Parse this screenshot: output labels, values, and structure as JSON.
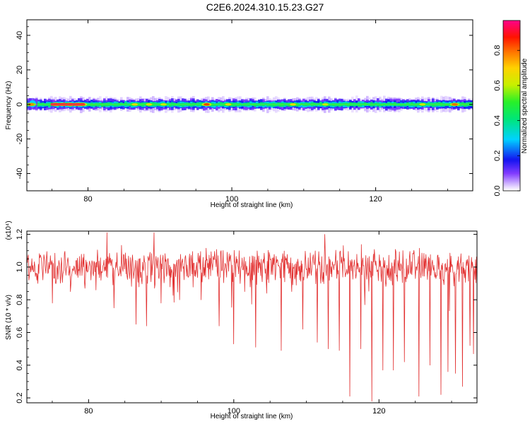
{
  "figure": {
    "title": "C2E6.2024.310.15.23.G27"
  },
  "chart_data": [
    {
      "type": "heatmap",
      "xlabel": "Height of straight line (km)",
      "ylabel": "Frequency (Hz)",
      "xlim": [
        71.5,
        133.5
      ],
      "ylim": [
        -50,
        49
      ],
      "xticks": [
        80,
        100,
        120
      ],
      "yticks": [
        -40,
        -20,
        0,
        20,
        40
      ],
      "colorbar": {
        "label": "Normalized spectral amplitude",
        "range": [
          0.0,
          0.97
        ],
        "ticks": [
          0.0,
          0.2,
          0.4,
          0.6,
          0.8
        ]
      },
      "ridge": {
        "center_frequency": 0,
        "half_width_hz": 2,
        "hot_spots": [
          {
            "x": 72.1,
            "amp": 0.82
          },
          {
            "x": 75.5,
            "amp": 0.95
          },
          {
            "x": 76.5,
            "amp": 0.95
          },
          {
            "x": 77.5,
            "amp": 0.95
          },
          {
            "x": 78.5,
            "amp": 0.92
          },
          {
            "x": 79.2,
            "amp": 0.9
          },
          {
            "x": 86.5,
            "amp": 0.7
          },
          {
            "x": 88.5,
            "amp": 0.68
          },
          {
            "x": 90.5,
            "amp": 0.66
          },
          {
            "x": 96.5,
            "amp": 0.9
          },
          {
            "x": 99.5,
            "amp": 0.7
          },
          {
            "x": 108.5,
            "amp": 0.7
          },
          {
            "x": 113.0,
            "amp": 0.65
          },
          {
            "x": 126.5,
            "amp": 0.66
          },
          {
            "x": 131.0,
            "amp": 0.85
          }
        ]
      }
    },
    {
      "type": "line",
      "xlabel": "Height of straight line (km)",
      "ylabel": "SNR (10 * v/v)",
      "y_multiplier": "(x10⁴)",
      "xlim": [
        71.5,
        133.5
      ],
      "ylim": [
        0.17,
        1.22
      ],
      "xticks": [
        80,
        100,
        120
      ],
      "yticks": [
        0.2,
        0.4,
        0.6,
        0.8,
        1.0,
        1.2
      ],
      "line_color": "#e23030",
      "baseline": 1.0,
      "dips": [
        {
          "x": 73.0,
          "y": 0.9
        },
        {
          "x": 75.0,
          "y": 0.78
        },
        {
          "x": 77.5,
          "y": 0.85
        },
        {
          "x": 79.5,
          "y": 0.87
        },
        {
          "x": 81.0,
          "y": 0.86
        },
        {
          "x": 83.5,
          "y": 0.75
        },
        {
          "x": 86.5,
          "y": 0.65
        },
        {
          "x": 88.0,
          "y": 0.64
        },
        {
          "x": 90.0,
          "y": 0.78
        },
        {
          "x": 92.5,
          "y": 0.8
        },
        {
          "x": 95.5,
          "y": 0.8
        },
        {
          "x": 98.0,
          "y": 0.64
        },
        {
          "x": 100.0,
          "y": 0.53
        },
        {
          "x": 101.5,
          "y": 0.85
        },
        {
          "x": 103.0,
          "y": 0.51
        },
        {
          "x": 104.5,
          "y": 0.84
        },
        {
          "x": 106.5,
          "y": 0.49
        },
        {
          "x": 108.0,
          "y": 0.85
        },
        {
          "x": 109.5,
          "y": 0.62
        },
        {
          "x": 111.5,
          "y": 0.54
        },
        {
          "x": 113.0,
          "y": 0.5
        },
        {
          "x": 114.5,
          "y": 0.49
        },
        {
          "x": 116.0,
          "y": 0.21
        },
        {
          "x": 117.5,
          "y": 0.5
        },
        {
          "x": 119.0,
          "y": 0.18
        },
        {
          "x": 120.5,
          "y": 0.37
        },
        {
          "x": 122.0,
          "y": 0.37
        },
        {
          "x": 123.5,
          "y": 0.42
        },
        {
          "x": 125.5,
          "y": 0.21
        },
        {
          "x": 127.0,
          "y": 0.4
        },
        {
          "x": 128.5,
          "y": 0.22
        },
        {
          "x": 129.5,
          "y": 0.36
        },
        {
          "x": 130.5,
          "y": 0.35
        },
        {
          "x": 131.5,
          "y": 0.27
        },
        {
          "x": 132.5,
          "y": 0.52
        },
        {
          "x": 133.0,
          "y": 0.47
        }
      ],
      "peaks": [
        {
          "x": 82.5,
          "y": 1.21
        },
        {
          "x": 89.0,
          "y": 1.21
        },
        {
          "x": 112.5,
          "y": 1.2
        }
      ]
    }
  ]
}
